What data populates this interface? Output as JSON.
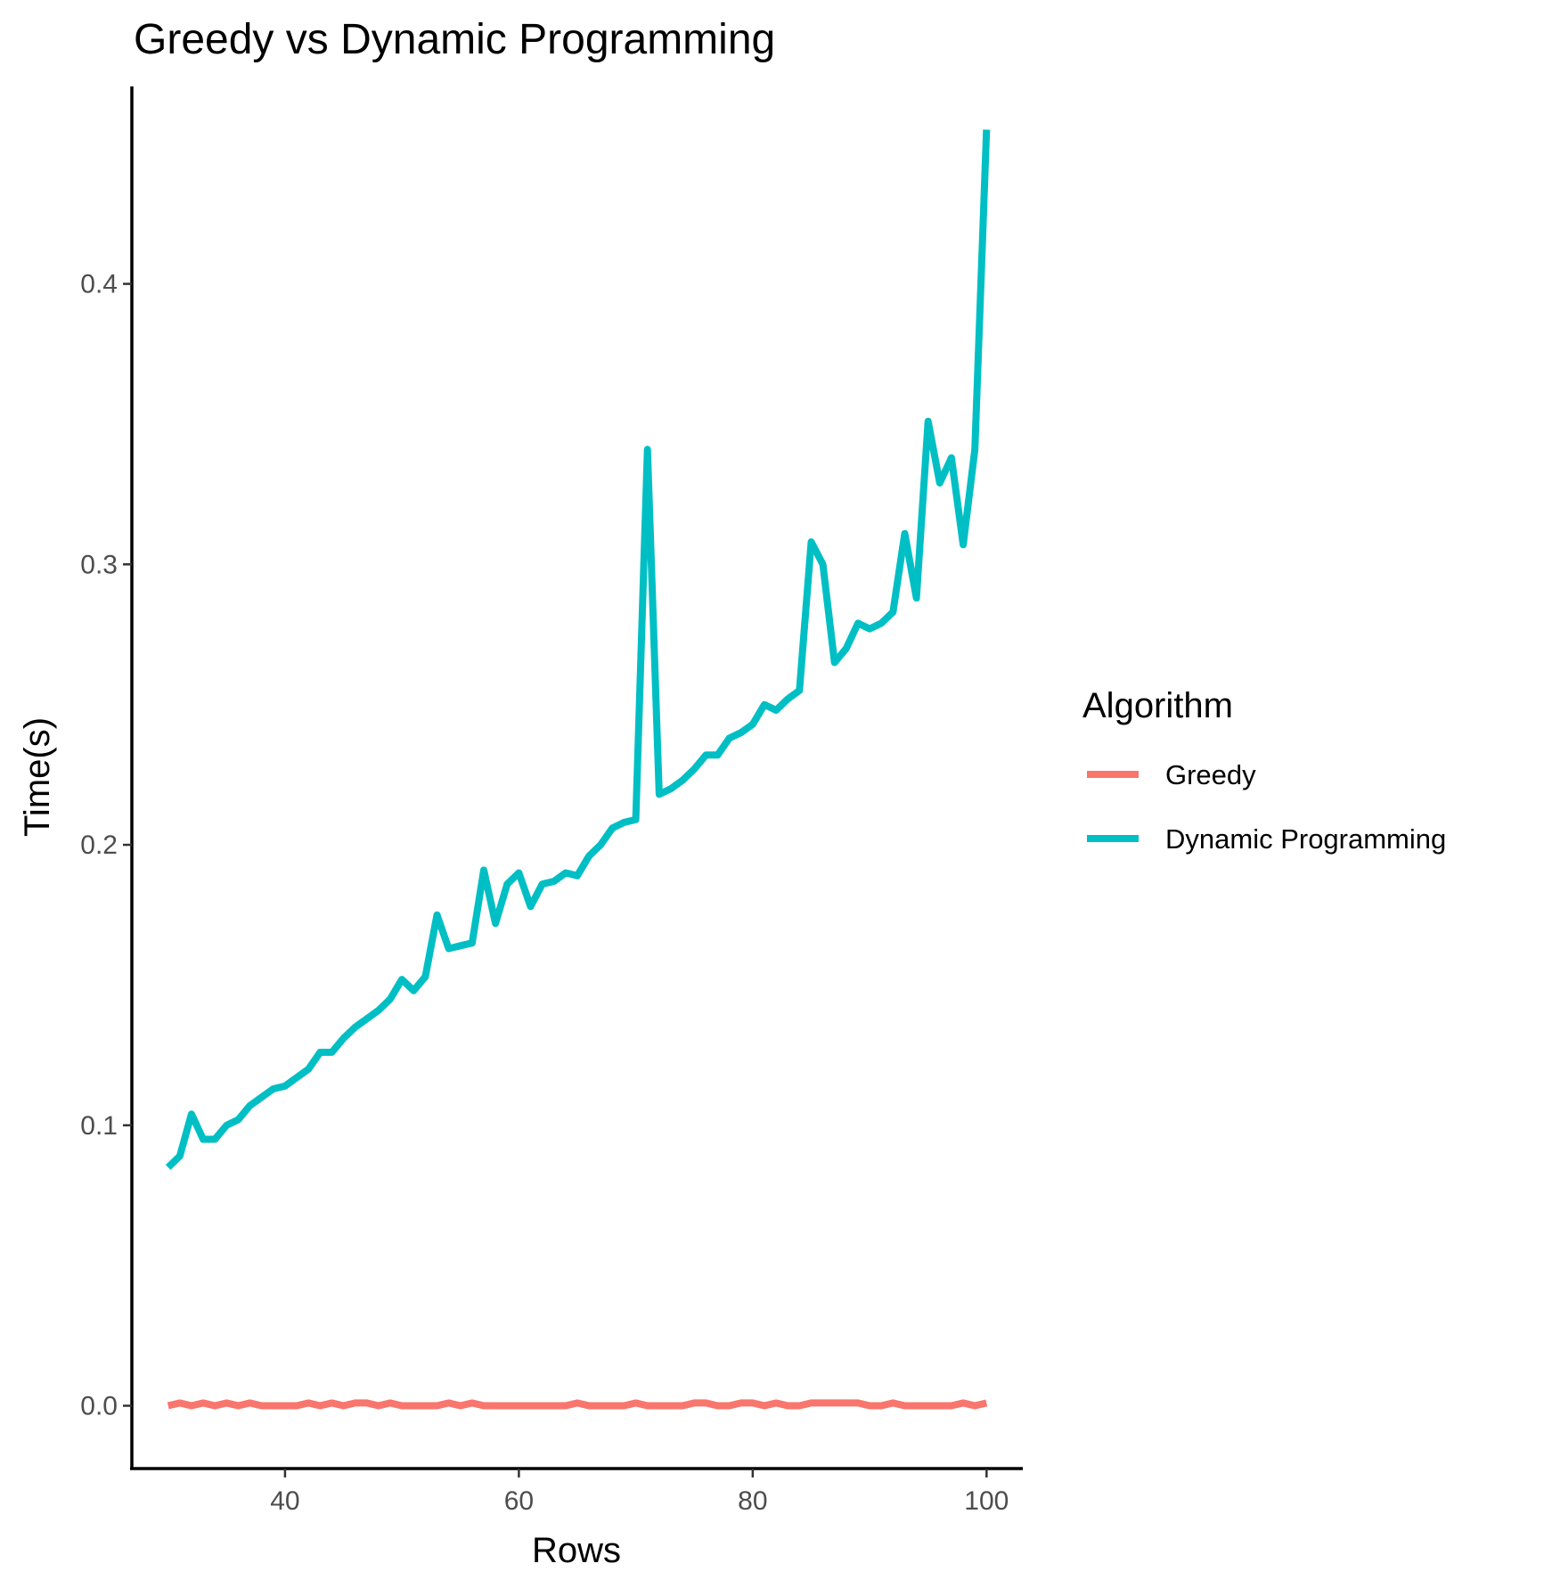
{
  "chart_data": {
    "type": "line",
    "title": "Greedy vs Dynamic Programming",
    "xlabel": "Rows",
    "ylabel": "Time(s)",
    "xlim": [
      26.9,
      103.1
    ],
    "ylim": [
      -0.0224,
      0.4704
    ],
    "x_ticks": [
      40,
      60,
      80,
      100
    ],
    "x_tick_labels": [
      "40",
      "60",
      "80",
      "100"
    ],
    "y_ticks": [
      0.0,
      0.1,
      0.2,
      0.3,
      0.4
    ],
    "y_tick_labels": [
      "0.0",
      "0.1",
      "0.2",
      "0.3",
      "0.4"
    ],
    "grid": false,
    "legend": {
      "title": "Algorithm",
      "position": "right"
    },
    "x": [
      30,
      31,
      32,
      33,
      34,
      35,
      36,
      37,
      38,
      39,
      40,
      41,
      42,
      43,
      44,
      45,
      46,
      47,
      48,
      49,
      50,
      51,
      52,
      53,
      54,
      55,
      56,
      57,
      58,
      59,
      60,
      61,
      62,
      63,
      64,
      65,
      66,
      67,
      68,
      69,
      70,
      71,
      72,
      73,
      74,
      75,
      76,
      77,
      78,
      79,
      80,
      81,
      82,
      83,
      84,
      85,
      86,
      87,
      88,
      89,
      90,
      91,
      92,
      93,
      94,
      95,
      96,
      97,
      98,
      99,
      100
    ],
    "series": [
      {
        "name": "Greedy",
        "color": "#F8766D",
        "values": [
          0.0,
          0.001,
          0.0,
          0.001,
          0.0,
          0.001,
          0.0,
          0.001,
          0.0,
          0.0,
          0.0,
          0.0,
          0.001,
          0.0,
          0.001,
          0.0,
          0.001,
          0.001,
          0.0,
          0.001,
          0.0,
          0.0,
          0.0,
          0.0,
          0.001,
          0.0,
          0.001,
          0.0,
          0.0,
          0.0,
          0.0,
          0.0,
          0.0,
          0.0,
          0.0,
          0.001,
          0.0,
          0.0,
          0.0,
          0.0,
          0.001,
          0.0,
          0.0,
          0.0,
          0.0,
          0.001,
          0.001,
          0.0,
          0.0,
          0.001,
          0.001,
          0.0,
          0.001,
          0.0,
          0.0,
          0.001,
          0.001,
          0.001,
          0.001,
          0.001,
          0.0,
          0.0,
          0.001,
          0.0,
          0.0,
          0.0,
          0.0,
          0.0,
          0.001,
          0.0,
          0.001
        ]
      },
      {
        "name": "Dynamic Programming",
        "color": "#00BFC4",
        "values": [
          0.085,
          0.089,
          0.104,
          0.095,
          0.095,
          0.1,
          0.102,
          0.107,
          0.11,
          0.113,
          0.114,
          0.117,
          0.12,
          0.126,
          0.126,
          0.131,
          0.135,
          0.138,
          0.141,
          0.145,
          0.152,
          0.148,
          0.153,
          0.175,
          0.163,
          0.164,
          0.165,
          0.191,
          0.172,
          0.186,
          0.19,
          0.178,
          0.186,
          0.187,
          0.19,
          0.189,
          0.196,
          0.2,
          0.206,
          0.208,
          0.209,
          0.341,
          0.218,
          0.22,
          0.223,
          0.227,
          0.232,
          0.232,
          0.238,
          0.24,
          0.243,
          0.25,
          0.248,
          0.252,
          0.255,
          0.308,
          0.3,
          0.265,
          0.27,
          0.279,
          0.277,
          0.279,
          0.283,
          0.311,
          0.288,
          0.351,
          0.329,
          0.338,
          0.307,
          0.341,
          0.455
        ]
      }
    ]
  }
}
